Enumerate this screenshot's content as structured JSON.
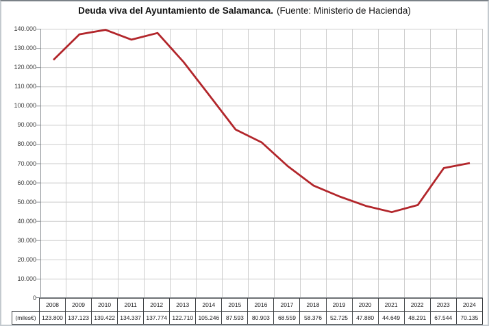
{
  "title": {
    "main": "Deuda viva del Ayuntamiento de Salamanca.",
    "source": "(Fuente: Ministerio de Hacienda)"
  },
  "chart_data": {
    "type": "line",
    "title": "Deuda viva del Ayuntamiento de Salamanca. (Fuente: Ministerio de Hacienda)",
    "categories": [
      "2008",
      "2009",
      "2010",
      "2011",
      "2012",
      "2013",
      "2014",
      "2015",
      "2016",
      "2017",
      "2018",
      "2019",
      "2020",
      "2021",
      "2022",
      "2023",
      "2024"
    ],
    "values": [
      123800,
      137123,
      139422,
      134337,
      137774,
      122710,
      105246,
      87593,
      80903,
      68559,
      58376,
      52725,
      47880,
      44649,
      48291,
      67544,
      70135
    ],
    "values_display": [
      "123.800",
      "137.123",
      "139.422",
      "134.337",
      "137.774",
      "122.710",
      "105.246",
      "87.593",
      "80.903",
      "68.559",
      "58.376",
      "52.725",
      "47.880",
      "44.649",
      "48.291",
      "67.544",
      "70.135"
    ],
    "row_label": "(miles€)",
    "xlabel": "",
    "ylabel": "",
    "ylim": [
      0,
      140000
    ],
    "y_tick_step": 10000,
    "y_tick_labels": [
      "0",
      "10.000",
      "20.000",
      "30.000",
      "40.000",
      "50.000",
      "60.000",
      "70.000",
      "80.000",
      "90.000",
      "100.000",
      "110.000",
      "120.000",
      "130.000",
      "140.000"
    ],
    "grid": true,
    "legend": false,
    "legend_position": "none",
    "line_color": "#b2262b",
    "grid_color": "#cbcbcb",
    "axis_color": "#8f9498",
    "table_border_color": "#3d4043"
  }
}
